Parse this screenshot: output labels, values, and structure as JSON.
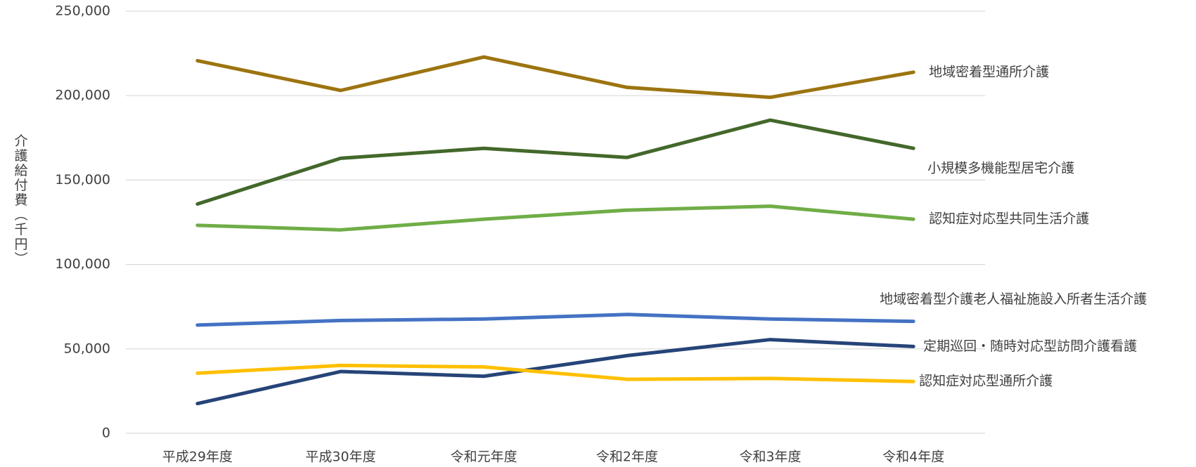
{
  "chart_data": {
    "type": "line",
    "y_label": "介護給付費（千円）",
    "categories": [
      "平成29年度",
      "平成30年度",
      "令和元年度",
      "令和2年度",
      "令和3年度",
      "令和4年度"
    ],
    "series": [
      {
        "name": "地域密着型通所介護",
        "color": "#9c7410",
        "values": [
          220700,
          203100,
          222900,
          204900,
          199000,
          213900
        ]
      },
      {
        "name": "小規模多機能型居宅介護",
        "color": "#43682b",
        "values": [
          135800,
          162900,
          168800,
          163400,
          185500,
          168800
        ]
      },
      {
        "name": "認知症対応型共同生活介護",
        "color": "#70ad47",
        "values": [
          123200,
          120500,
          126800,
          132200,
          134500,
          126800
        ]
      },
      {
        "name": "地域密着型介護老人福祉施設入所者生活介護",
        "color": "#4472c4",
        "values": [
          64100,
          66800,
          67700,
          70400,
          67700,
          66300
        ]
      },
      {
        "name": "定期巡回・随時対応型訪問介護看護",
        "color": "#264478",
        "values": [
          17600,
          36600,
          33800,
          46000,
          55500,
          51400
        ]
      },
      {
        "name": "認知症対応型通所介護",
        "color": "#ffc000",
        "values": [
          35600,
          40200,
          39300,
          32000,
          32500,
          30700
        ]
      }
    ],
    "ylim": [
      0,
      250000
    ],
    "yticks": [
      0,
      {
        "value": 50000,
        "label": "50,000"
      },
      {
        "value": 100000,
        "label": "100,000"
      },
      {
        "value": 150000,
        "label": "150,000"
      },
      {
        "value": 200000,
        "label": "200,000"
      },
      {
        "value": 250000,
        "label": "250,000"
      }
    ],
    "grid": true
  }
}
